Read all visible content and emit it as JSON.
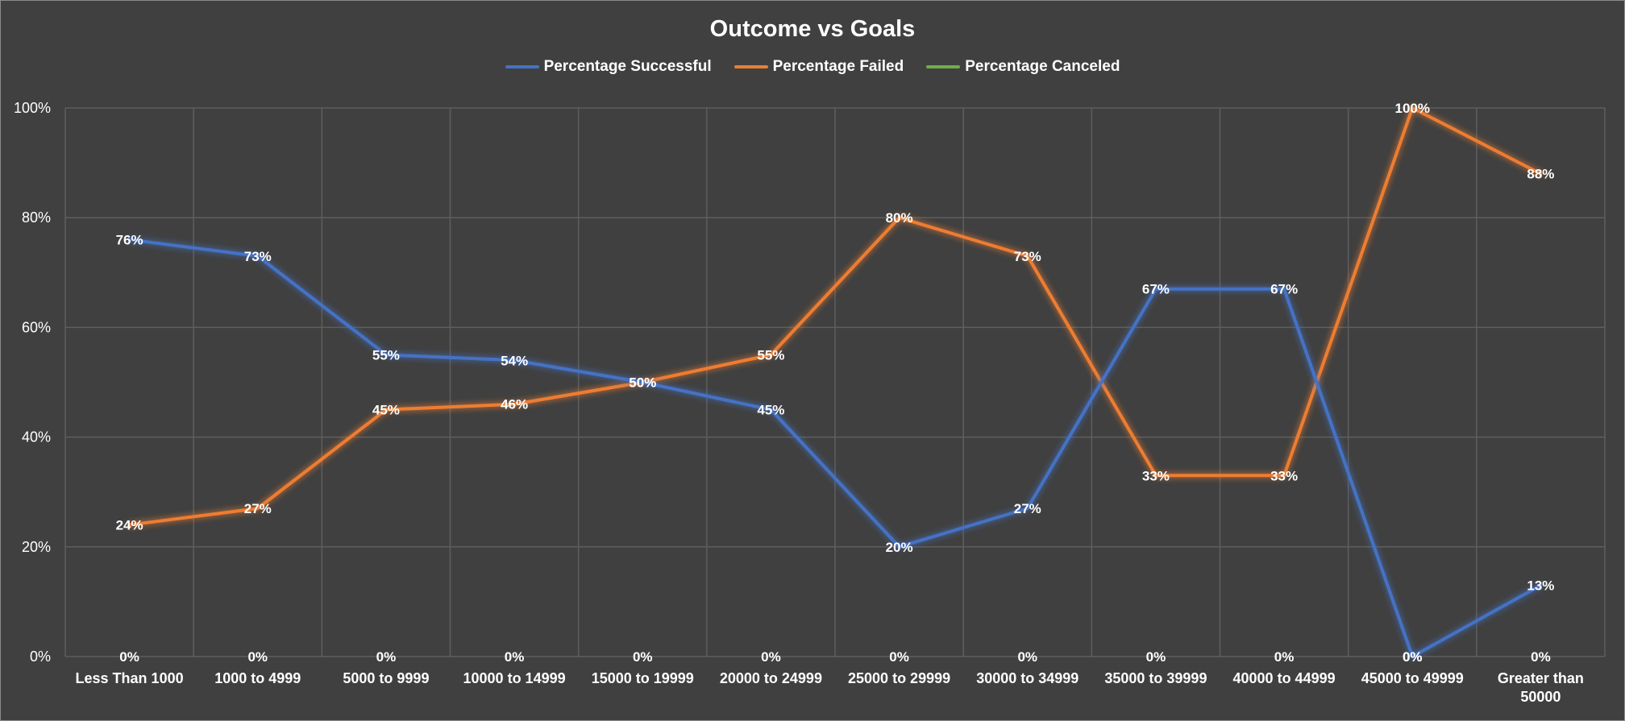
{
  "chart_data": {
    "type": "line",
    "title": "Outcome vs Goals",
    "xlabel": "",
    "ylabel": "",
    "categories": [
      "Less Than 1000",
      "1000 to 4999",
      "5000 to 9999",
      "10000 to 14999",
      "15000 to 19999",
      "20000 to 24999",
      "25000 to 29999",
      "30000 to 34999",
      "35000 to 39999",
      "40000 to 44999",
      "45000 to 49999",
      "Greater than 50000"
    ],
    "ylim": [
      0,
      100
    ],
    "yticks": [
      "0%",
      "20%",
      "40%",
      "60%",
      "80%",
      "100%"
    ],
    "grid": true,
    "legend_position": "top",
    "series": [
      {
        "name": "Percentage Successful",
        "color": "#4472c4",
        "values": [
          76,
          73,
          55,
          54,
          50,
          45,
          20,
          27,
          67,
          67,
          0,
          13
        ],
        "labels": [
          "76%",
          "73%",
          "55%",
          "54%",
          "50%",
          "45%",
          "20%",
          "27%",
          "67%",
          "67%",
          "0%",
          "13%"
        ]
      },
      {
        "name": "Percentage Failed",
        "color": "#ed7d31",
        "values": [
          24,
          27,
          45,
          46,
          50,
          55,
          80,
          73,
          33,
          33,
          100,
          88
        ],
        "labels": [
          "24%",
          "27%",
          "45%",
          "46%",
          "50%",
          "55%",
          "80%",
          "73%",
          "33%",
          "33%",
          "100%",
          "88%"
        ]
      },
      {
        "name": "Percentage Canceled",
        "color": "#70ad47",
        "values": [
          0,
          0,
          0,
          0,
          0,
          0,
          0,
          0,
          0,
          0,
          0,
          0
        ],
        "labels": [
          "0%",
          "0%",
          "0%",
          "0%",
          "0%",
          "0%",
          "0%",
          "0%",
          "0%",
          "0%",
          "0%",
          "0%"
        ]
      }
    ]
  }
}
